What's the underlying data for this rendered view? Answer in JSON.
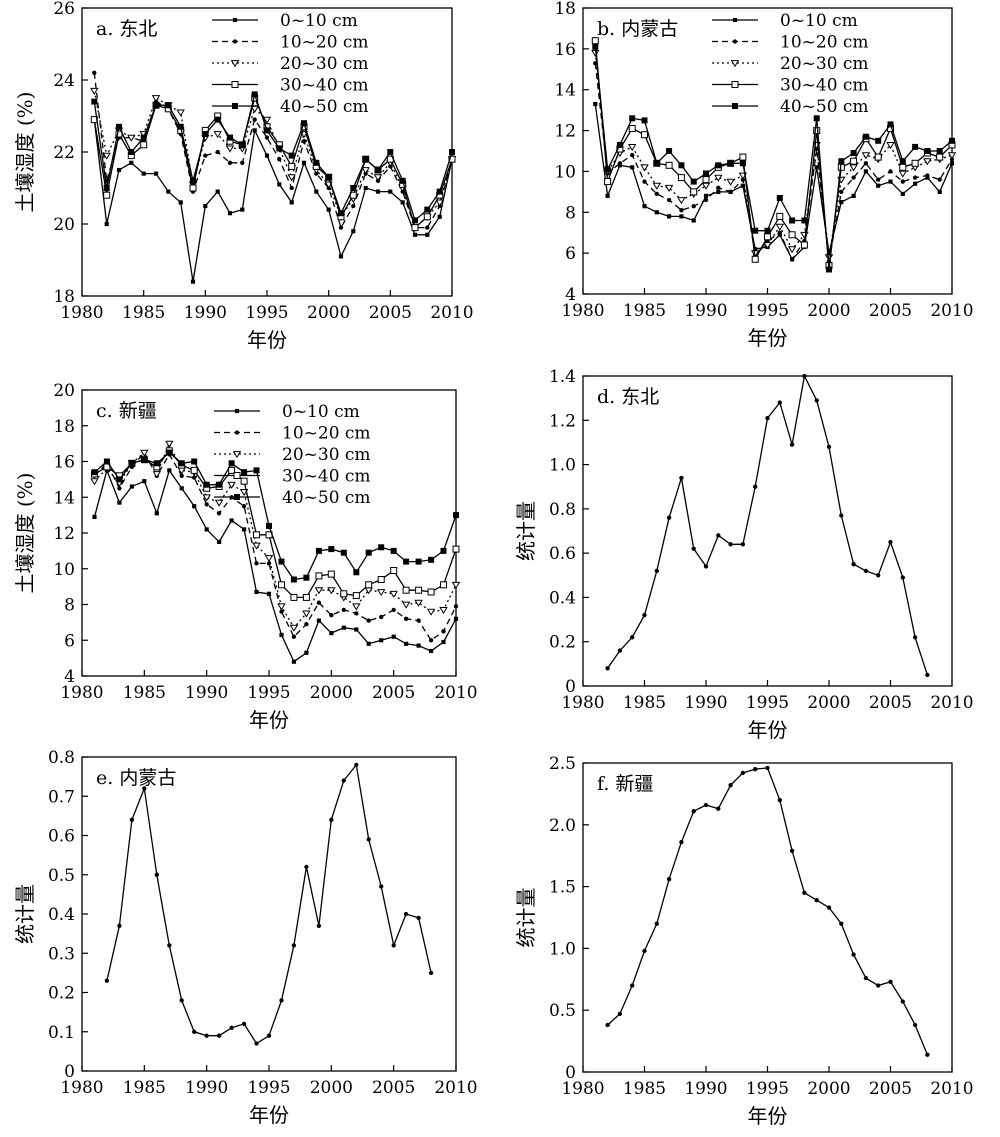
{
  "chart_data": [
    {
      "type": "line",
      "title": "a. 东北",
      "xlabel": "年份",
      "ylabel": "土壤湿度 (%)",
      "xlim": [
        1980,
        2010
      ],
      "ylim": [
        18,
        26
      ],
      "xticks": [
        1980,
        1985,
        1990,
        1995,
        2000,
        2005,
        2010
      ],
      "yticks": [
        18,
        20,
        22,
        24,
        26
      ],
      "legend_position": "top-right",
      "x": [
        1981,
        1982,
        1983,
        1984,
        1985,
        1986,
        1987,
        1988,
        1989,
        1990,
        1991,
        1992,
        1993,
        1994,
        1995,
        1996,
        1997,
        1998,
        1999,
        2000,
        2001,
        2002,
        2003,
        2004,
        2005,
        2006,
        2007,
        2008,
        2009,
        2010
      ],
      "series": [
        {
          "name": "0~10 cm",
          "style": "solid-square-small",
          "values": [
            22.9,
            20.0,
            21.5,
            21.7,
            21.4,
            21.4,
            20.9,
            20.6,
            18.4,
            20.5,
            20.9,
            20.3,
            20.4,
            22.6,
            21.9,
            21.1,
            20.6,
            21.7,
            20.9,
            20.4,
            19.1,
            19.8,
            21.0,
            20.9,
            20.9,
            20.6,
            19.7,
            19.7,
            20.2,
            21.8
          ]
        },
        {
          "name": "10~20 cm",
          "style": "dashed-dot",
          "values": [
            24.2,
            21.2,
            22.4,
            22.4,
            22.3,
            23.4,
            23.2,
            22.5,
            20.9,
            21.9,
            22.0,
            21.7,
            21.7,
            22.9,
            22.4,
            21.8,
            21.0,
            22.3,
            21.4,
            21.0,
            19.9,
            20.5,
            21.4,
            21.2,
            21.6,
            20.9,
            19.9,
            19.9,
            20.5,
            21.8
          ]
        },
        {
          "name": "20~30 cm",
          "style": "dotted-triangle",
          "values": [
            23.7,
            21.9,
            22.6,
            22.4,
            22.5,
            23.5,
            23.3,
            23.1,
            21.1,
            22.4,
            22.5,
            22.1,
            22.1,
            23.2,
            22.9,
            22.1,
            21.3,
            22.5,
            21.5,
            21.1,
            20.2,
            20.7,
            21.5,
            21.3,
            21.7,
            21.0,
            19.9,
            20.2,
            20.6,
            21.8
          ]
        },
        {
          "name": "30~40 cm",
          "style": "solid-open-square",
          "values": [
            22.9,
            20.8,
            22.5,
            21.9,
            22.2,
            23.3,
            23.2,
            22.6,
            21.0,
            22.6,
            23.0,
            22.3,
            22.2,
            23.5,
            22.7,
            22.2,
            21.6,
            22.7,
            21.6,
            21.3,
            20.2,
            20.8,
            21.8,
            21.5,
            21.8,
            21.1,
            19.9,
            20.2,
            20.8,
            21.8
          ]
        },
        {
          "name": "40~50 cm",
          "style": "solid-filled-square",
          "values": [
            23.4,
            21.0,
            22.7,
            22.0,
            22.4,
            23.3,
            23.3,
            22.7,
            21.2,
            22.5,
            22.9,
            22.4,
            22.2,
            23.6,
            22.6,
            22.1,
            21.9,
            22.8,
            21.7,
            21.3,
            20.3,
            21.0,
            21.8,
            21.5,
            22.0,
            21.2,
            20.1,
            20.4,
            20.9,
            22.0
          ]
        }
      ]
    },
    {
      "type": "line",
      "title": "b. 内蒙古",
      "xlabel": "年份",
      "ylabel": "",
      "xlim": [
        1980,
        2010
      ],
      "ylim": [
        4,
        18
      ],
      "xticks": [
        1980,
        1985,
        1990,
        1995,
        2000,
        2005,
        2010
      ],
      "yticks": [
        4,
        6,
        8,
        10,
        12,
        14,
        16,
        18
      ],
      "legend_position": "top-right",
      "x": [
        1981,
        1982,
        1983,
        1984,
        1985,
        1986,
        1987,
        1988,
        1989,
        1990,
        1991,
        1992,
        1993,
        1994,
        1995,
        1996,
        1997,
        1998,
        1999,
        2000,
        2001,
        2002,
        2003,
        2004,
        2005,
        2006,
        2007,
        2008,
        2009,
        2010
      ],
      "series": [
        {
          "name": "0~10 cm",
          "style": "solid-square-small",
          "values": [
            13.3,
            8.8,
            10.3,
            10.2,
            8.3,
            8.0,
            7.8,
            7.8,
            7.6,
            8.8,
            9.0,
            9.0,
            9.3,
            6.2,
            6.3,
            6.9,
            5.7,
            6.3,
            10.2,
            6.0,
            8.5,
            8.8,
            10.0,
            9.3,
            9.5,
            8.9,
            9.4,
            9.7,
            9.0,
            10.4
          ]
        },
        {
          "name": "10~20 cm",
          "style": "dashed-dot",
          "values": [
            15.3,
            9.9,
            10.4,
            10.8,
            9.5,
            8.9,
            8.6,
            8.1,
            8.3,
            8.6,
            9.2,
            9.0,
            9.6,
            5.9,
            6.6,
            7.0,
            5.7,
            6.6,
            11.1,
            5.6,
            9.0,
            9.7,
            10.4,
            9.6,
            10.0,
            9.5,
            9.7,
            9.8,
            9.6,
            10.6
          ]
        },
        {
          "name": "20~30 cm",
          "style": "dotted-triangle",
          "values": [
            15.8,
            10.0,
            10.9,
            11.2,
            10.2,
            9.3,
            9.2,
            8.6,
            8.9,
            9.3,
            9.7,
            9.5,
            9.8,
            6.0,
            6.4,
            7.3,
            6.2,
            6.9,
            11.3,
            5.8,
            9.6,
            10.2,
            10.8,
            10.6,
            11.3,
            9.9,
            10.2,
            10.5,
            10.6,
            10.8
          ]
        },
        {
          "name": "30~40 cm",
          "style": "solid-open-square",
          "values": [
            16.4,
            9.5,
            11.1,
            12.1,
            11.8,
            10.4,
            10.3,
            9.7,
            9.0,
            9.6,
            10.2,
            10.4,
            10.7,
            5.7,
            6.8,
            7.8,
            6.9,
            6.4,
            12.0,
            5.4,
            10.2,
            10.5,
            11.6,
            10.7,
            12.1,
            10.2,
            10.4,
            10.9,
            10.7,
            11.3
          ]
        },
        {
          "name": "40~50 cm",
          "style": "solid-filled-square",
          "values": [
            16.1,
            10.1,
            11.3,
            12.6,
            12.5,
            10.4,
            11.0,
            10.3,
            9.5,
            9.9,
            10.3,
            10.4,
            10.4,
            7.1,
            7.1,
            8.7,
            7.6,
            7.6,
            12.6,
            5.2,
            10.5,
            10.9,
            11.7,
            11.5,
            12.3,
            10.5,
            11.2,
            11.0,
            11.0,
            11.5
          ]
        }
      ]
    },
    {
      "type": "line",
      "title": "c. 新疆",
      "xlabel": "年份",
      "ylabel": "土壤湿度 (%)",
      "xlim": [
        1980,
        2010
      ],
      "ylim": [
        4,
        20
      ],
      "xticks": [
        1980,
        1985,
        1990,
        1995,
        2000,
        2005,
        2010
      ],
      "yticks": [
        4,
        6,
        8,
        10,
        12,
        14,
        16,
        18,
        20
      ],
      "legend_position": "top-right",
      "x": [
        1981,
        1982,
        1983,
        1984,
        1985,
        1986,
        1987,
        1988,
        1989,
        1990,
        1991,
        1992,
        1993,
        1994,
        1995,
        1996,
        1997,
        1998,
        1999,
        2000,
        2001,
        2002,
        2003,
        2004,
        2005,
        2006,
        2007,
        2008,
        2009,
        2010
      ],
      "series": [
        {
          "name": "0~10 cm",
          "style": "solid-square-small",
          "values": [
            12.9,
            15.5,
            13.7,
            14.6,
            14.9,
            13.1,
            15.5,
            14.5,
            13.5,
            12.2,
            11.5,
            12.7,
            12.2,
            8.7,
            8.6,
            6.3,
            4.8,
            5.3,
            7.1,
            6.4,
            6.7,
            6.6,
            5.8,
            6.0,
            6.2,
            5.8,
            5.7,
            5.4,
            5.9,
            7.2
          ]
        },
        {
          "name": "10~20 cm",
          "style": "dashed-dot",
          "values": [
            15.2,
            15.9,
            14.5,
            15.7,
            16.5,
            15.2,
            16.4,
            15.2,
            15.1,
            13.6,
            13.1,
            14.0,
            13.5,
            10.3,
            10.3,
            7.6,
            6.2,
            6.9,
            8.1,
            7.4,
            7.7,
            7.5,
            7.1,
            7.3,
            7.7,
            7.2,
            7.1,
            6.0,
            6.5,
            7.9
          ]
        },
        {
          "name": "20~30 cm",
          "style": "dotted-triangle",
          "values": [
            14.9,
            15.6,
            14.8,
            15.9,
            16.5,
            15.3,
            17.0,
            15.5,
            15.4,
            14.0,
            13.7,
            14.7,
            14.3,
            11.3,
            10.6,
            7.9,
            6.7,
            7.5,
            8.8,
            8.8,
            8.4,
            7.9,
            8.8,
            8.7,
            8.6,
            8.0,
            8.1,
            7.6,
            7.7,
            9.1
          ]
        },
        {
          "name": "30~40 cm",
          "style": "solid-open-square",
          "values": [
            15.3,
            15.7,
            15.2,
            15.9,
            16.1,
            15.7,
            16.6,
            15.8,
            15.5,
            14.5,
            14.6,
            15.5,
            14.9,
            11.9,
            11.9,
            9.1,
            8.4,
            8.4,
            9.6,
            9.7,
            8.6,
            8.5,
            9.1,
            9.4,
            9.9,
            8.8,
            8.8,
            8.7,
            9.1,
            11.1
          ]
        },
        {
          "name": "40~50 cm",
          "style": "solid-filled-square",
          "values": [
            15.4,
            16.0,
            15.0,
            15.9,
            16.1,
            15.9,
            16.5,
            15.9,
            16.0,
            14.7,
            14.7,
            15.9,
            15.4,
            15.5,
            12.4,
            10.4,
            9.4,
            9.5,
            11.0,
            11.1,
            10.9,
            9.8,
            10.9,
            11.2,
            11.0,
            10.4,
            10.4,
            10.5,
            11.0,
            13.0
          ]
        }
      ]
    },
    {
      "type": "line",
      "title": "d. 东北",
      "xlabel": "年份",
      "ylabel": "统计量",
      "xlim": [
        1980,
        2010
      ],
      "ylim": [
        0,
        1.4
      ],
      "xticks": [
        1980,
        1985,
        1990,
        1995,
        2000,
        2005,
        2010
      ],
      "yticks": [
        "0",
        "0.2",
        "0.4",
        "0.6",
        "0.8",
        "1.0",
        "1.2",
        "1.4"
      ],
      "x": [
        1982,
        1983,
        1984,
        1985,
        1986,
        1987,
        1988,
        1989,
        1990,
        1991,
        1992,
        1993,
        1994,
        1995,
        1996,
        1997,
        1998,
        1999,
        2000,
        2001,
        2002,
        2003,
        2004,
        2005,
        2006,
        2007,
        2008
      ],
      "series": [
        {
          "values": [
            0.08,
            0.16,
            0.22,
            0.32,
            0.52,
            0.76,
            0.94,
            0.62,
            0.54,
            0.68,
            0.64,
            0.64,
            0.9,
            1.21,
            1.28,
            1.09,
            1.4,
            1.29,
            1.08,
            0.77,
            0.55,
            0.52,
            0.5,
            0.65,
            0.49,
            0.22,
            0.05
          ]
        }
      ]
    },
    {
      "type": "line",
      "title": "e. 内蒙古",
      "xlabel": "年份",
      "ylabel": "统计量",
      "xlim": [
        1980,
        2010
      ],
      "ylim": [
        0,
        0.8
      ],
      "xticks": [
        1980,
        1985,
        1990,
        1995,
        2000,
        2005,
        2010
      ],
      "yticks": [
        "0",
        "0.1",
        "0.2",
        "0.3",
        "0.4",
        "0.5",
        "0.6",
        "0.7",
        "0.8"
      ],
      "x": [
        1982,
        1983,
        1984,
        1985,
        1986,
        1987,
        1988,
        1989,
        1990,
        1991,
        1992,
        1993,
        1994,
        1995,
        1996,
        1997,
        1998,
        1999,
        2000,
        2001,
        2002,
        2003,
        2004,
        2005,
        2006,
        2007,
        2008
      ],
      "series": [
        {
          "values": [
            0.23,
            0.37,
            0.64,
            0.72,
            0.5,
            0.32,
            0.18,
            0.1,
            0.09,
            0.09,
            0.11,
            0.12,
            0.07,
            0.09,
            0.18,
            0.32,
            0.52,
            0.37,
            0.64,
            0.74,
            0.78,
            0.59,
            0.47,
            0.32,
            0.4,
            0.39,
            0.25
          ]
        }
      ]
    },
    {
      "type": "line",
      "title": "f. 新疆",
      "xlabel": "年份",
      "ylabel": "统计量",
      "xlim": [
        1980,
        2010
      ],
      "ylim": [
        0,
        2.5
      ],
      "xticks": [
        1980,
        1985,
        1990,
        1995,
        2000,
        2005,
        2010
      ],
      "yticks": [
        "0",
        "0.5",
        "1.0",
        "1.5",
        "2.0",
        "2.5"
      ],
      "x": [
        1982,
        1983,
        1984,
        1985,
        1986,
        1987,
        1988,
        1989,
        1990,
        1991,
        1992,
        1993,
        1994,
        1995,
        1996,
        1997,
        1998,
        1999,
        2000,
        2001,
        2002,
        2003,
        2004,
        2005,
        2006,
        2007,
        2008
      ],
      "series": [
        {
          "values": [
            0.38,
            0.47,
            0.7,
            0.98,
            1.2,
            1.56,
            1.86,
            2.11,
            2.16,
            2.13,
            2.32,
            2.42,
            2.45,
            2.46,
            2.2,
            1.79,
            1.45,
            1.39,
            1.33,
            1.2,
            0.95,
            0.76,
            0.7,
            0.73,
            0.57,
            0.38,
            0.14
          ]
        }
      ]
    }
  ]
}
